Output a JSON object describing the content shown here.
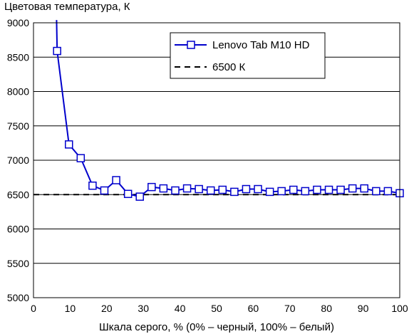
{
  "chart_data": {
    "type": "line",
    "ylabel": "Цветовая температура, К",
    "xlabel": "Шкала серого, % (0% – черный, 100% – белый)",
    "xlim": [
      0,
      100
    ],
    "ylim": [
      5000,
      9000
    ],
    "x_ticks": [
      0,
      10,
      20,
      30,
      40,
      50,
      60,
      70,
      80,
      90,
      100
    ],
    "y_ticks": [
      5000,
      5500,
      6000,
      6500,
      7000,
      7500,
      8000,
      8500,
      9000
    ],
    "grid": "horizontal",
    "legend_position": "top-right",
    "series": [
      {
        "name": "Lenovo Tab M10 HD",
        "color": "#0000cc",
        "marker": "square",
        "line_only_points": [
          [
            6.3,
            9040
          ]
        ],
        "points": [
          [
            6.45,
            8590
          ],
          [
            9.68,
            7230
          ],
          [
            12.9,
            7030
          ],
          [
            16.13,
            6630
          ],
          [
            19.35,
            6560
          ],
          [
            22.58,
            6710
          ],
          [
            25.81,
            6510
          ],
          [
            29.03,
            6470
          ],
          [
            32.26,
            6610
          ],
          [
            35.48,
            6590
          ],
          [
            38.71,
            6560
          ],
          [
            41.94,
            6590
          ],
          [
            45.16,
            6580
          ],
          [
            48.39,
            6560
          ],
          [
            51.61,
            6570
          ],
          [
            54.84,
            6540
          ],
          [
            58.06,
            6580
          ],
          [
            61.29,
            6580
          ],
          [
            64.52,
            6540
          ],
          [
            67.74,
            6550
          ],
          [
            70.97,
            6570
          ],
          [
            74.19,
            6550
          ],
          [
            77.42,
            6570
          ],
          [
            80.65,
            6570
          ],
          [
            83.87,
            6570
          ],
          [
            87.1,
            6590
          ],
          [
            90.32,
            6590
          ],
          [
            93.55,
            6550
          ],
          [
            96.77,
            6550
          ],
          [
            100,
            6520
          ]
        ]
      },
      {
        "name": "6500 К",
        "color": "#000000",
        "dashed": true,
        "constant": 6500
      }
    ]
  }
}
